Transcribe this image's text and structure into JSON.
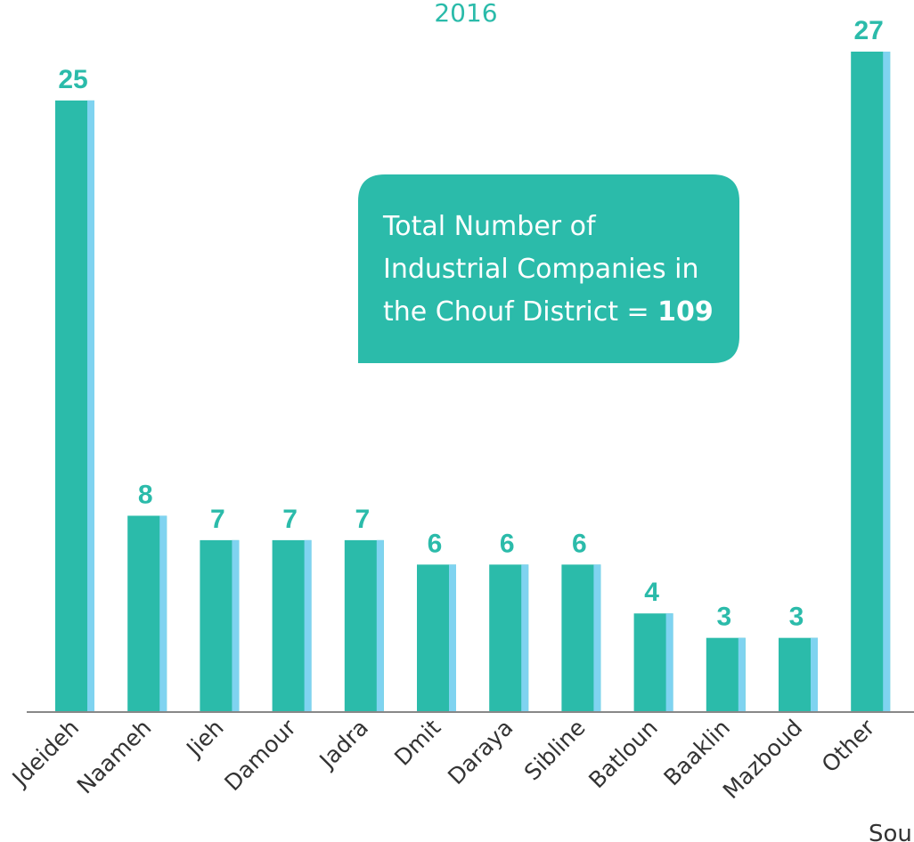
{
  "chart_data": {
    "type": "bar",
    "subtitle": "2016",
    "categories": [
      "Jdeideh",
      "Naameh",
      "Jieh",
      "Damour",
      "Jadra",
      "Dmit",
      "Daraya",
      "Sibline",
      "Batloun",
      "Baaklin",
      "Mazboud",
      "Other"
    ],
    "values": [
      25,
      8,
      7,
      7,
      7,
      6,
      6,
      6,
      4,
      3,
      3,
      27
    ],
    "color": "#2bbbaa",
    "edge_color": "#7fd3f0",
    "annotation": {
      "lines": [
        "Total Number of",
        "Industrial Companies in",
        "the Chouf District = "
      ],
      "total": "109"
    },
    "source": "Sou"
  }
}
